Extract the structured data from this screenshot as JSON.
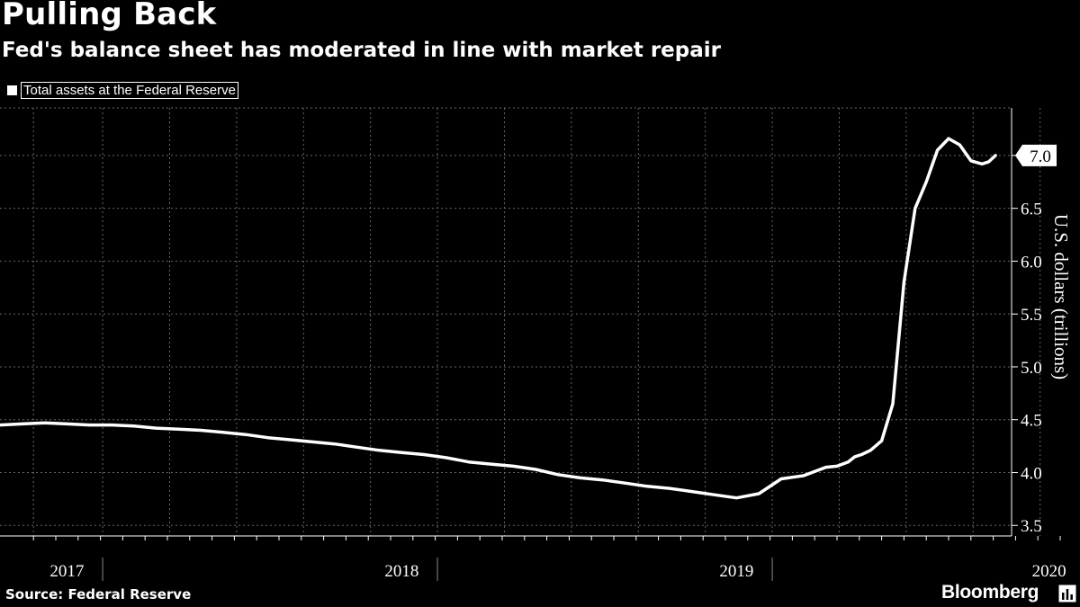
{
  "header": {
    "title": "Pulling Back",
    "subtitle": "Fed's balance sheet has moderated in line with market repair"
  },
  "legend": {
    "label": "Total assets at the Federal Reserve"
  },
  "footer": {
    "source": "Source: Federal Reserve",
    "brand": "Bloomberg"
  },
  "colors": {
    "background": "#000000",
    "line": "#ffffff",
    "grid": "#666666"
  },
  "chart_data": {
    "type": "line",
    "title": "Pulling Back",
    "subtitle": "Fed's balance sheet has moderated in line with market repair",
    "ylabel": "U.S. dollars (trillions)",
    "xlabel": "",
    "ylim": [
      3.4,
      7.45
    ],
    "xlim": [
      0,
      50
    ],
    "yticks": [
      3.5,
      4.0,
      4.5,
      5.0,
      5.5,
      6.0,
      6.5,
      7.0
    ],
    "ytick_labels": [
      "3.5",
      "4.0",
      "4.5",
      "5.0",
      "5.5",
      "6.0",
      "6.5",
      "7.0"
    ],
    "x_unit": "months since Jan 2017",
    "year_labels": [
      {
        "label": "2017",
        "x": 3.0
      },
      {
        "label": "2018",
        "x": 18.0
      },
      {
        "label": "2019",
        "x": 33.0
      },
      {
        "label": "2020",
        "x": 47.0
      }
    ],
    "year_boundaries": [
      4.6,
      19.6,
      34.6
    ],
    "x_gridlines": [
      1.5,
      4.6,
      7.6,
      10.6,
      13.6,
      16.6,
      19.6,
      22.6,
      25.6,
      28.6,
      31.6,
      34.6,
      37.6,
      40.6,
      43.6,
      46.6
    ],
    "grid": true,
    "last_value_label": "7.0",
    "series": [
      {
        "name": "Total assets at the Federal Reserve",
        "x": [
          0,
          1,
          2,
          3,
          4,
          5,
          6,
          7,
          8,
          9,
          10,
          11,
          12,
          13,
          14,
          15,
          16,
          17,
          18,
          19,
          20,
          21,
          22,
          23,
          24,
          25,
          26,
          27,
          28,
          29,
          30,
          31,
          32,
          33,
          34,
          35,
          36,
          37,
          37.5,
          38,
          38.3,
          38.6,
          39,
          39.5,
          40,
          40.5,
          41,
          41.5,
          42,
          42.5,
          43,
          43.5,
          44,
          44.3,
          44.6
        ],
        "values": [
          4.45,
          4.46,
          4.47,
          4.46,
          4.45,
          4.45,
          4.44,
          4.42,
          4.41,
          4.4,
          4.38,
          4.36,
          4.33,
          4.31,
          4.29,
          4.27,
          4.24,
          4.21,
          4.19,
          4.17,
          4.14,
          4.1,
          4.08,
          4.06,
          4.03,
          3.98,
          3.95,
          3.93,
          3.9,
          3.87,
          3.85,
          3.82,
          3.79,
          3.76,
          3.8,
          3.94,
          3.97,
          4.05,
          4.06,
          4.1,
          4.15,
          4.17,
          4.21,
          4.3,
          4.65,
          5.8,
          6.5,
          6.75,
          7.05,
          7.16,
          7.1,
          6.95,
          6.92,
          6.94,
          7.0
        ]
      }
    ]
  }
}
